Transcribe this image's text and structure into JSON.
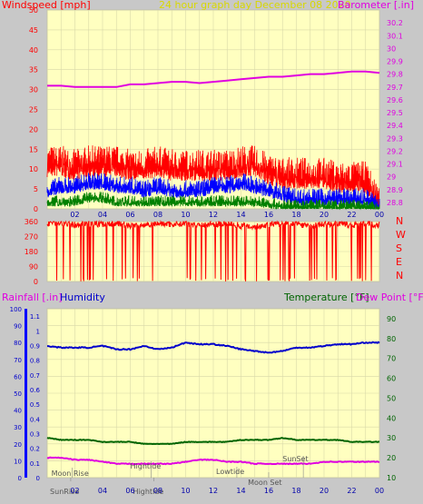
{
  "header": {
    "title": "24 hour graph day   December 08 2020"
  },
  "colors": {
    "background": "#c8c8c8",
    "plot_bg": "#ffffc0",
    "grid": "#d8d8a8",
    "wind": "#ff0000",
    "gust_avg": "#0000ff",
    "wind_avg": "#008000",
    "barometer": "#e000e0",
    "humidity": "#0000cc",
    "temperature": "#006400",
    "dewpoint": "#e000e0",
    "rain": "#ff00ff"
  },
  "chart_data": [
    {
      "type": "line",
      "title": "24 hour graph day   December 08 2020",
      "ylabel_left": "Windspeed [mph]",
      "ylabel_right": "Barometer [.in]",
      "ylim_left": [
        0,
        50
      ],
      "yticks_left": [
        "0",
        "5",
        "10",
        "15",
        "20",
        "25",
        "30",
        "35",
        "40",
        "45",
        "50"
      ],
      "ylim_right": [
        28.75,
        30.3
      ],
      "yticks_right": [
        "28.8",
        "28.9",
        "29",
        "29.1",
        "29.2",
        "29.3",
        "29.4",
        "29.5",
        "29.6",
        "29.7",
        "29.8",
        "29.9",
        "30",
        "30.1",
        "30.2"
      ],
      "xticks": [
        "02",
        "04",
        "06",
        "08",
        "10",
        "12",
        "14",
        "16",
        "18",
        "20",
        "22",
        "00"
      ],
      "series": [
        {
          "key": "wind",
          "x": [
            0,
            1,
            2,
            3,
            4,
            5,
            6,
            7,
            8,
            9,
            10,
            11,
            12,
            13,
            14,
            15,
            16,
            17,
            18,
            19,
            20,
            21,
            22,
            23,
            24
          ],
          "y": [
            12,
            12,
            11,
            12,
            12,
            12,
            11,
            11,
            12,
            11,
            11,
            11,
            11,
            11,
            12,
            12,
            10,
            9,
            9,
            9,
            9,
            8,
            8,
            8,
            2
          ]
        },
        {
          "key": "gust_avg",
          "x": [
            0,
            1,
            2,
            3,
            4,
            5,
            6,
            7,
            8,
            9,
            10,
            11,
            12,
            13,
            14,
            15,
            16,
            17,
            18,
            19,
            20,
            21,
            22,
            23,
            24
          ],
          "y": [
            5,
            6,
            6,
            7,
            7,
            6,
            6,
            5,
            6,
            5,
            5,
            5,
            6,
            6,
            7,
            6,
            5,
            4,
            3,
            3,
            3,
            3,
            3,
            3,
            1
          ]
        },
        {
          "key": "wind_avg",
          "x": [
            0,
            1,
            2,
            3,
            4,
            5,
            6,
            7,
            8,
            9,
            10,
            11,
            12,
            13,
            14,
            15,
            16,
            17,
            18,
            19,
            20,
            21,
            22,
            23,
            24
          ],
          "y": [
            2,
            2,
            2,
            3,
            3,
            2,
            2,
            2,
            2,
            2,
            2,
            2,
            2,
            2,
            2,
            2,
            1.5,
            1,
            1,
            1,
            1,
            1,
            1,
            1,
            0
          ]
        },
        {
          "key": "barometer",
          "x": [
            0,
            1,
            2,
            3,
            4,
            5,
            6,
            7,
            8,
            9,
            10,
            11,
            12,
            13,
            14,
            15,
            16,
            17,
            18,
            19,
            20,
            21,
            22,
            23,
            24
          ],
          "y": [
            29.71,
            29.71,
            29.7,
            29.7,
            29.7,
            29.7,
            29.72,
            29.72,
            29.73,
            29.74,
            29.74,
            29.73,
            29.74,
            29.75,
            29.76,
            29.77,
            29.78,
            29.78,
            29.79,
            29.8,
            29.8,
            29.81,
            29.82,
            29.82,
            29.81
          ]
        }
      ]
    },
    {
      "type": "line",
      "title": "",
      "ylabel_right": "N W S E N",
      "ylim": [
        0,
        360
      ],
      "yticks": [
        "0",
        "90",
        "180",
        "270",
        "360"
      ],
      "direction_labels": [
        "N",
        "W",
        "S",
        "E",
        "N"
      ],
      "series": [
        {
          "key": "direction",
          "x": [
            0,
            1,
            2,
            3,
            4,
            5,
            6,
            7,
            8,
            9,
            10,
            11,
            12,
            13,
            14,
            15,
            16,
            17,
            18,
            19,
            20,
            21,
            22,
            23,
            24
          ],
          "y": [
            350,
            355,
            340,
            350,
            345,
            350,
            335,
            340,
            350,
            345,
            350,
            340,
            345,
            350,
            335,
            330,
            340,
            345,
            350,
            330,
            345,
            350,
            340,
            350,
            340
          ]
        }
      ]
    },
    {
      "type": "line",
      "title": "",
      "ylabel_left": "Rainfall [.in]",
      "ylabel_left2": "Humidity",
      "ylabel_right": "Temperature [°F]",
      "ylabel_right2": "Dew Point [°F]",
      "ylim_left": [
        0,
        1.15
      ],
      "yticks_rain": [
        "0",
        "0.1",
        "0.2",
        "0.3",
        "0.4",
        "0.5",
        "0.6",
        "0.7",
        "0.8",
        "0.9",
        "1",
        "1.1"
      ],
      "ylim_humidity": [
        0,
        100
      ],
      "yticks_humidity": [
        "0",
        "10",
        "20",
        "30",
        "40",
        "50",
        "60",
        "70",
        "80",
        "90",
        "100"
      ],
      "ylim_right": [
        10,
        95
      ],
      "yticks_right": [
        "10",
        "20",
        "30",
        "40",
        "50",
        "60",
        "70",
        "80",
        "90"
      ],
      "annotations": [
        "Moon Rise",
        "Hightide",
        "Hightide",
        "Lowtide",
        "Moon Set",
        "SunSet",
        "SunRise"
      ],
      "series": [
        {
          "key": "humidity",
          "x": [
            0,
            1,
            2,
            3,
            4,
            5,
            6,
            7,
            8,
            9,
            10,
            11,
            12,
            13,
            14,
            15,
            16,
            17,
            18,
            19,
            20,
            21,
            22,
            23,
            24
          ],
          "y": [
            78,
            77,
            77,
            77,
            78,
            76,
            76,
            78,
            76,
            77,
            80,
            79,
            79,
            78,
            76,
            75,
            74,
            75,
            77,
            77,
            78,
            79,
            79,
            80,
            80
          ]
        },
        {
          "key": "temperature",
          "x": [
            0,
            1,
            2,
            3,
            4,
            5,
            6,
            7,
            8,
            9,
            10,
            11,
            12,
            13,
            14,
            15,
            16,
            17,
            18,
            19,
            20,
            21,
            22,
            23,
            24
          ],
          "y": [
            30,
            29,
            29,
            29,
            28,
            28,
            28,
            27,
            27,
            27,
            28,
            28,
            28,
            28,
            29,
            29,
            29,
            30,
            29,
            29,
            29,
            29,
            28,
            28,
            28
          ]
        },
        {
          "key": "dewpoint",
          "x": [
            0,
            1,
            2,
            3,
            4,
            5,
            6,
            7,
            8,
            9,
            10,
            11,
            12,
            13,
            14,
            15,
            16,
            17,
            18,
            19,
            20,
            21,
            22,
            23,
            24
          ],
          "y": [
            20,
            20,
            19,
            19,
            18,
            17,
            17,
            17,
            17,
            17,
            18,
            19,
            19,
            18,
            18,
            17,
            17,
            17,
            17,
            17,
            18,
            18,
            18,
            18,
            18
          ]
        }
      ]
    }
  ]
}
